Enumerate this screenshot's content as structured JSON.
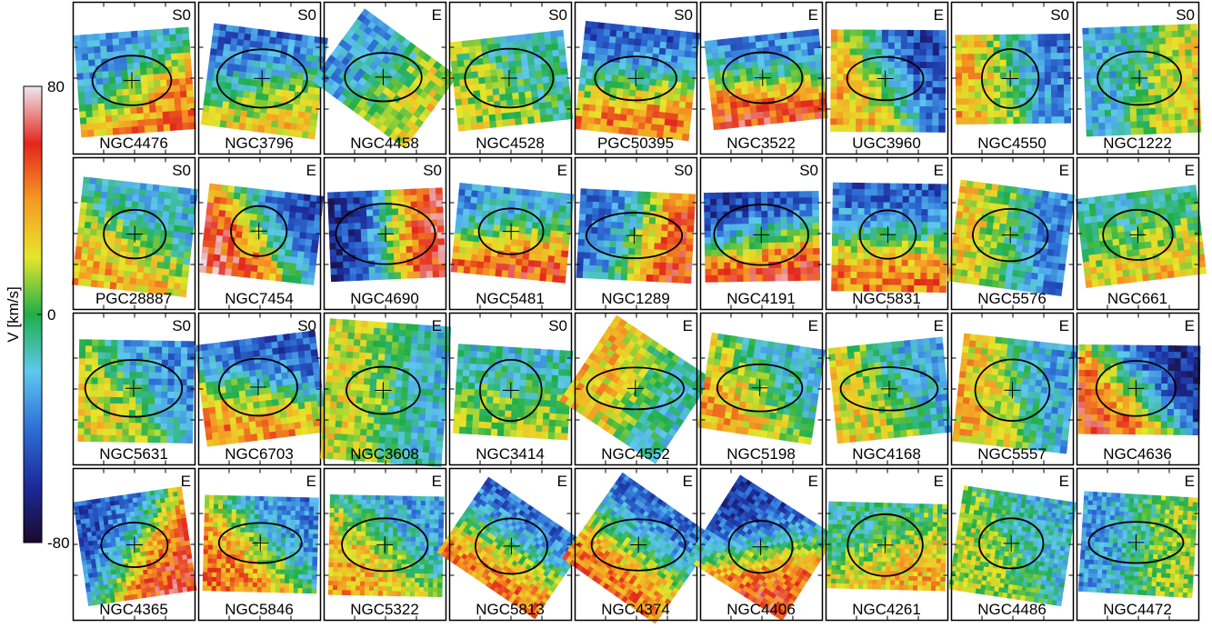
{
  "chart_data": {
    "type": "heatmap",
    "colorbar": {
      "label": "V [km/s]",
      "lim": [
        -80,
        80
      ],
      "ticks": [
        80,
        0,
        -80
      ],
      "colors": [
        "#1a0a2a",
        "#1c2a9a",
        "#2e6fd6",
        "#5ec8ee",
        "#1fae4a",
        "#e6e62a",
        "#f59a24",
        "#e3261c",
        "#f0e8ee"
      ]
    },
    "columns": 9,
    "panels": [
      {
        "name": "NGC4476",
        "morph": "S0"
      },
      {
        "name": "NGC3796",
        "morph": "S0"
      },
      {
        "name": "NGC4458",
        "morph": "E"
      },
      {
        "name": "NGC4528",
        "morph": "S0"
      },
      {
        "name": "PGC50395",
        "morph": "S0"
      },
      {
        "name": "NGC3522",
        "morph": "E"
      },
      {
        "name": "UGC3960",
        "morph": "E"
      },
      {
        "name": "NGC4550",
        "morph": "S0"
      },
      {
        "name": "NGC1222",
        "morph": "S0"
      },
      {
        "name": "PGC28887",
        "morph": "S0"
      },
      {
        "name": "NGC7454",
        "morph": "E"
      },
      {
        "name": "NGC4690",
        "morph": "S0"
      },
      {
        "name": "NGC5481",
        "morph": "E"
      },
      {
        "name": "NGC1289",
        "morph": "S0"
      },
      {
        "name": "NGC4191",
        "morph": "S0"
      },
      {
        "name": "NGC5831",
        "morph": "E"
      },
      {
        "name": "NGC5576",
        "morph": "E"
      },
      {
        "name": "NGC661",
        "morph": "E"
      },
      {
        "name": "NGC5631",
        "morph": "S0"
      },
      {
        "name": "NGC6703",
        "morph": "S0"
      },
      {
        "name": "NGC3608",
        "morph": "E"
      },
      {
        "name": "NGC3414",
        "morph": "S0"
      },
      {
        "name": "NGC4552",
        "morph": "E"
      },
      {
        "name": "NGC5198",
        "morph": "E"
      },
      {
        "name": "NGC4168",
        "morph": "E"
      },
      {
        "name": "NGC5557",
        "morph": "E"
      },
      {
        "name": "NGC4636",
        "morph": "E"
      },
      {
        "name": "NGC4365",
        "morph": "E"
      },
      {
        "name": "NGC5846",
        "morph": "E"
      },
      {
        "name": "NGC5322",
        "morph": "E"
      },
      {
        "name": "NGC5813",
        "morph": "E"
      },
      {
        "name": "NGC4374",
        "morph": "E"
      },
      {
        "name": "NGC4406",
        "morph": "E"
      },
      {
        "name": "NGC4261",
        "morph": "E"
      },
      {
        "name": "NGC4486",
        "morph": "E"
      },
      {
        "name": "NGC4472",
        "morph": "E"
      }
    ]
  }
}
